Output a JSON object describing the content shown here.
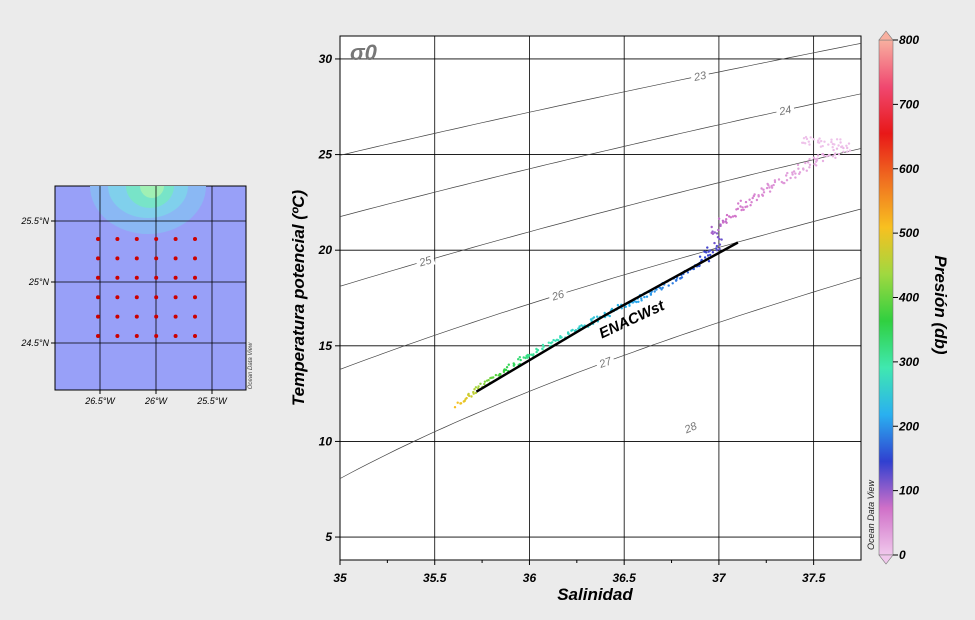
{
  "chart_data": [
    {
      "type": "scatter",
      "title": "",
      "xlabel": "Salinidad",
      "ylabel": "Temperatura potencial (ºC)",
      "xlim": [
        35,
        37.75
      ],
      "ylim": [
        3.8,
        31.2
      ],
      "x_ticks": [
        35,
        35.5,
        36,
        36.5,
        37,
        37.5
      ],
      "x_tick_labels": [
        "35",
        "35.5",
        "36",
        "36.5",
        "37",
        "37.5"
      ],
      "y_ticks": [
        5,
        10,
        15,
        20,
        25,
        30
      ],
      "y_tick_labels": [
        "5",
        "10",
        "15",
        "20",
        "25",
        "30"
      ],
      "grid": true,
      "isopycnal_symbol": "σ0",
      "isopycnals": [
        {
          "label": "23",
          "sigma": 23
        },
        {
          "label": "24",
          "sigma": 24
        },
        {
          "label": "25",
          "sigma": 25
        },
        {
          "label": "26",
          "sigma": 26
        },
        {
          "label": "27",
          "sigma": 27
        },
        {
          "label": "28",
          "sigma": 28
        }
      ],
      "water_mass": {
        "label": "ENACWst",
        "line": [
          [
            35.72,
            12.6
          ],
          [
            36.4,
            16.6
          ],
          [
            37.1,
            20.4
          ]
        ]
      },
      "series": [
        {
          "name": "",
          "points": [
            [
              35.62,
              11.9,
              510
            ],
            [
              35.66,
              12.2,
              490
            ],
            [
              35.7,
              12.6,
              460
            ],
            [
              35.76,
              13.0,
              420
            ],
            [
              35.82,
              13.4,
              390
            ],
            [
              35.9,
              13.9,
              350
            ],
            [
              35.98,
              14.4,
              320
            ],
            [
              36.05,
              14.8,
              300
            ],
            [
              36.12,
              15.2,
              285
            ],
            [
              36.2,
              15.6,
              270
            ],
            [
              36.28,
              16.0,
              255
            ],
            [
              36.38,
              16.5,
              240
            ],
            [
              36.48,
              17.0,
              225
            ],
            [
              36.58,
              17.5,
              210
            ],
            [
              36.68,
              18.0,
              195
            ],
            [
              36.78,
              18.5,
              180
            ],
            [
              36.88,
              19.2,
              160
            ],
            [
              36.95,
              19.8,
              140
            ],
            [
              37.0,
              20.4,
              120
            ],
            [
              36.98,
              21.0,
              90
            ],
            [
              37.05,
              21.8,
              70
            ],
            [
              37.15,
              22.5,
              60
            ],
            [
              37.28,
              23.3,
              45
            ],
            [
              37.42,
              24.2,
              30
            ],
            [
              37.55,
              24.9,
              20
            ],
            [
              37.68,
              25.3,
              10
            ],
            [
              37.62,
              25.6,
              5
            ],
            [
              37.42,
              25.7,
              5
            ]
          ]
        }
      ],
      "colorbar": {
        "label": "Presión (db)",
        "range": [
          0,
          800
        ],
        "ticks": [
          0,
          100,
          200,
          300,
          400,
          500,
          600,
          700,
          800
        ],
        "tick_labels": [
          "0",
          "100",
          "200",
          "300",
          "400",
          "500",
          "600",
          "700",
          "800"
        ],
        "colors": [
          "#f0c8ec",
          "#d070c8",
          "#3040d0",
          "#2ab0f0",
          "#40e8b0",
          "#30d040",
          "#a0d840",
          "#f8c020",
          "#f07020",
          "#e81818",
          "#f04870",
          "#f8b0a0"
        ]
      },
      "watermark": "Ocean Data View"
    },
    {
      "type": "map",
      "x_tick_labels": [
        "26.5°W",
        "26°W",
        "25.5°W"
      ],
      "y_tick_labels": [
        "25.5°N",
        "25°N",
        "24.5°N"
      ],
      "stations": {
        "rows": 6,
        "cols": 6
      },
      "station_color": "#cc0000",
      "background_color": "#98a0f8",
      "watermark": "Ocean Data View"
    }
  ]
}
